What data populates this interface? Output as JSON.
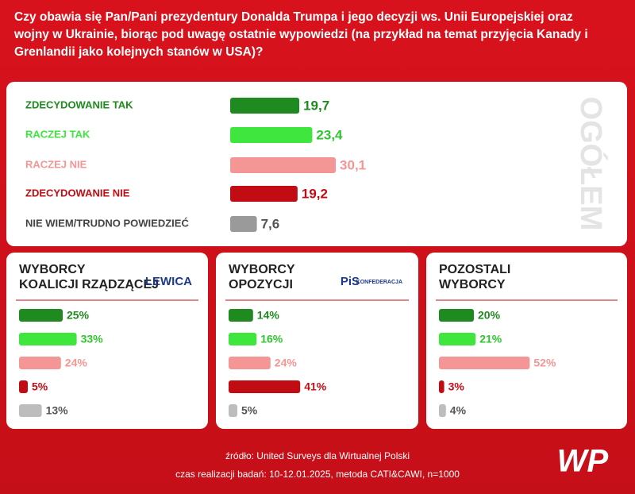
{
  "title": [
    "Czy obawia się Pan/Pani prezydentury Donalda Trumpa i jego decyzji ws. Unii Europejskiej oraz",
    "wojny w Ukrainie, biorąc pod uwagę ostatnie wypowiedzi (na przykład na temat przyjęcia Kanady i",
    "Grenlandii jako kolejnych stanów w USA)?"
  ],
  "chart_data": [
    {
      "type": "bar",
      "orientation": "horizontal",
      "title": "OGÓŁEM",
      "categories": [
        "ZDECYDOWANIE TAK",
        "RACZEJ TAK",
        "RACZEJ NIE",
        "ZDECYDOWANIE NIE",
        "NIE WIEM/TRUDNO POWIEDZIEĆ"
      ],
      "values": [
        19.7,
        23.4,
        30.1,
        19.2,
        7.6
      ],
      "value_labels": [
        "19,7",
        "23,4",
        "30,1",
        "19,2",
        "7,6"
      ],
      "colors": [
        "#1f8a1f",
        "#3ee63e",
        "#f59696",
        "#c20c14",
        "#9a9a9a"
      ]
    },
    {
      "type": "bar",
      "orientation": "horizontal",
      "title": [
        "WYBORCY",
        "KOALICJI RZĄDZĄCEJ"
      ],
      "logos": [
        "LEWICA"
      ],
      "values": [
        25,
        33,
        24,
        5,
        13
      ],
      "value_labels": [
        "25%",
        "33%",
        "24%",
        "5%",
        "13%"
      ],
      "colors": [
        "#1f8a1f",
        "#3ee63e",
        "#f59696",
        "#c20c14",
        "#bdbdbd"
      ]
    },
    {
      "type": "bar",
      "orientation": "horizontal",
      "title": [
        "WYBORCY",
        "OPOZYCJI"
      ],
      "logos": [
        "PiS",
        "KONFEDERACJA"
      ],
      "values": [
        14,
        16,
        24,
        41,
        5
      ],
      "value_labels": [
        "14%",
        "16%",
        "24%",
        "41%",
        "5%"
      ],
      "colors": [
        "#1f8a1f",
        "#3ee63e",
        "#f59696",
        "#c20c14",
        "#bdbdbd"
      ]
    },
    {
      "type": "bar",
      "orientation": "horizontal",
      "title": [
        "POZOSTALI",
        "WYBORCY"
      ],
      "values": [
        20,
        21,
        52,
        3,
        4
      ],
      "value_labels": [
        "20%",
        "21%",
        "52%",
        "3%",
        "4%"
      ],
      "colors": [
        "#1f8a1f",
        "#3ee63e",
        "#f59696",
        "#c20c14",
        "#bdbdbd"
      ]
    }
  ],
  "footer": {
    "source": "źródło: United Surveys dla Wirtualnej Polski",
    "method": "czas realizacji badań: 10-12.01.2025, metoda CATI&CAWI, n=1000"
  },
  "logo": "WP"
}
